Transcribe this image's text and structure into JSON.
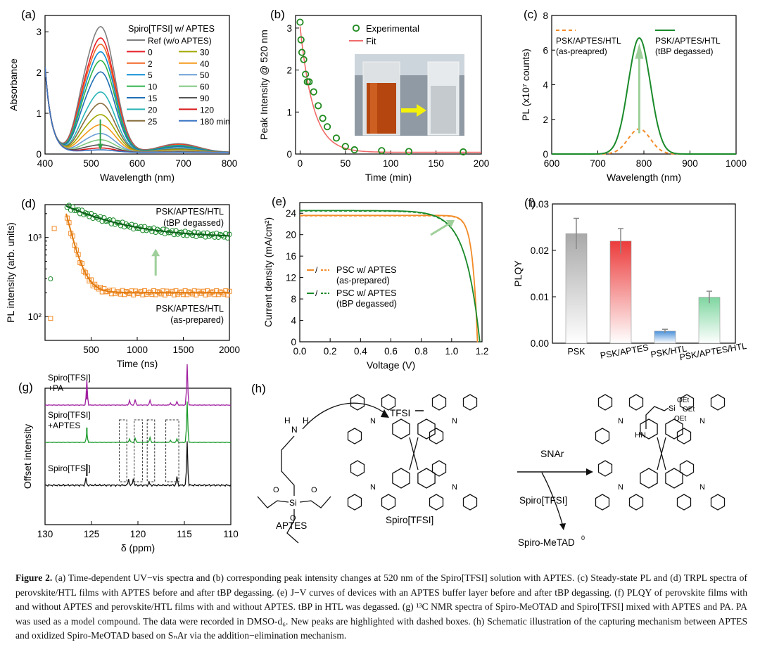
{
  "panels": [
    {
      "id": "a",
      "label": "(a)",
      "type": "line",
      "xlabel": "Wavelength (nm)",
      "ylabel": "Absorbance",
      "xlim": [
        400,
        800
      ],
      "ylim": [
        0,
        3.4
      ],
      "xticks": [
        400,
        500,
        600,
        700,
        800
      ],
      "yticks": [
        0,
        1,
        2,
        3
      ],
      "legend_title": "Spiro[TFSI] w/ APTES",
      "series": [
        {
          "name": "Ref (w/o APTES)",
          "color": "#7f7f7f",
          "scale": 1.0
        },
        {
          "name": "0",
          "color": "#e81e25",
          "scale": 0.91
        },
        {
          "name": "2",
          "color": "#f26522",
          "scale": 0.86
        },
        {
          "name": "5",
          "color": "#0f8ed6",
          "scale": 0.8
        },
        {
          "name": "10",
          "color": "#2fb34a",
          "scale": 0.73
        },
        {
          "name": "15",
          "color": "#1f6fb5",
          "scale": 0.64
        },
        {
          "name": "20",
          "color": "#2ab5b8",
          "scale": 0.48
        },
        {
          "name": "25",
          "color": "#8a6d3b",
          "scale": 0.39
        },
        {
          "name": "30",
          "color": "#a0a800",
          "scale": 0.3
        },
        {
          "name": "40",
          "color": "#f49a1a",
          "scale": 0.22
        },
        {
          "name": "50",
          "color": "#6b9fd6",
          "scale": 0.15
        },
        {
          "name": "60",
          "color": "#7fc77f",
          "scale": 0.1
        },
        {
          "name": "90",
          "color": "#555555",
          "scale": 0.06
        },
        {
          "name": "120",
          "color": "#d7191c",
          "scale": 0.035
        },
        {
          "name": "180 min",
          "color": "#3a75c4",
          "scale": 0.02
        }
      ],
      "peak_nm": 520,
      "peak_max": 3.05
    },
    {
      "id": "b",
      "label": "(b)",
      "type": "scatter",
      "xlabel": "Time (min)",
      "ylabel": "Peak Intensity @ 520 nm",
      "xlim": [
        -5,
        200
      ],
      "ylim": [
        0,
        3.3
      ],
      "xticks": [
        0,
        50,
        100,
        150,
        200
      ],
      "yticks": [
        0,
        1,
        2,
        3
      ],
      "legend": [
        "Experimental",
        "Fit"
      ],
      "x": [
        0,
        1,
        2,
        4,
        6,
        8,
        10,
        15,
        20,
        25,
        30,
        40,
        50,
        60,
        90,
        120,
        180
      ],
      "y": [
        3.14,
        2.72,
        2.42,
        2.25,
        1.9,
        1.72,
        1.72,
        1.48,
        1.15,
        0.85,
        0.65,
        0.38,
        0.18,
        0.1,
        0.08,
        0.06,
        0.05
      ],
      "fit": {
        "a": 3.0,
        "tau": 14.5
      }
    },
    {
      "id": "c",
      "label": "(c)",
      "type": "line",
      "xlabel": "Wavelength (nm)",
      "ylabel": "PL (x10⁷ counts)",
      "xlim": [
        600,
        1000
      ],
      "ylim": [
        0,
        8
      ],
      "xticks": [
        600,
        700,
        800,
        900,
        1000
      ],
      "yticks": [
        0,
        2,
        4,
        6,
        8
      ],
      "series": [
        {
          "name": "PSK/APTES/HTL (as-preapred)",
          "peak": 1.45,
          "color": "#f28c28",
          "dash": true
        },
        {
          "name": "PSK/APTES/HTL (tBP degassed)",
          "peak": 6.7,
          "color": "#1a8a2a",
          "dash": false
        }
      ],
      "center_nm": 790,
      "sigma": 34,
      "legend1": [
        "PSK/APTES/HTL",
        "(as-preapred)"
      ],
      "legend2": [
        "PSK/APTES/HTL",
        "(tBP degassed)"
      ]
    },
    {
      "id": "d",
      "label": "(d)",
      "type": "scatter",
      "xlabel": "Time (ns)",
      "ylabel": "PL intensity (arb. units)",
      "xlim": [
        0,
        2000
      ],
      "yscale": "log",
      "ylim": [
        50,
        2600
      ],
      "xticks": [
        500,
        1000,
        1500,
        2000
      ],
      "yticks": [
        100,
        1000
      ],
      "series": [
        {
          "name": "PSK/APTES/HTL (tBP degassed)",
          "color": "#1a8a2a",
          "A": 1000,
          "B": 1500,
          "tau": 520,
          "start": 230
        },
        {
          "name": "PSK/APTES/HTL (as-prepared)",
          "color": "#f28c28",
          "A": 200,
          "B": 1800,
          "tau": 85,
          "start": 230
        }
      ],
      "label_top": [
        "PSK/APTES/HTL",
        "(tBP degassed)"
      ],
      "label_bottom": [
        "PSK/APTES/HTL",
        "(as-prepared)"
      ]
    },
    {
      "id": "e",
      "label": "(e)",
      "type": "line",
      "xlabel": "Voltage (V)",
      "ylabel": "Current density (mA/cm²)",
      "xlim": [
        0,
        1.2
      ],
      "ylim": [
        0,
        26
      ],
      "xticks": [
        0.0,
        0.2,
        0.4,
        0.6,
        0.8,
        1.0,
        1.2
      ],
      "yticks": [
        0,
        4,
        8,
        12,
        16,
        20,
        24
      ],
      "series": [
        {
          "name": "PSC w/ APTES (as-prepared)",
          "jsc": 23.6,
          "voc": 1.17,
          "n": 9.0,
          "color": "#f28c28"
        },
        {
          "name": "PSC w/ APTES (tBP degassed)",
          "jsc": 24.5,
          "voc": 1.185,
          "n": 3.2,
          "color": "#1a8a2a"
        }
      ],
      "legend1": [
        "PSC w/ APTES",
        "(as-prepared)"
      ],
      "legend2": [
        "PSC w/ APTES",
        "(tBP degassed)"
      ]
    },
    {
      "id": "f",
      "label": "(f)",
      "type": "bar",
      "ylabel": "PLQY",
      "ylim": [
        0,
        0.03
      ],
      "yticks": [
        0.0,
        0.01,
        0.02,
        0.03
      ],
      "categories": [
        "PSK",
        "PSK/APTES",
        "PSK/HTL",
        "PSK/APTES/HTL"
      ],
      "values": [
        0.0236,
        0.022,
        0.0026,
        0.0099
      ],
      "errors": [
        0.0033,
        0.0027,
        0.0004,
        0.0013
      ],
      "colors": [
        "#a9a9a9",
        "#ec3b3b",
        "#4a90d9",
        "#7fd6a0"
      ]
    },
    {
      "id": "g",
      "label": "(g)",
      "type": "nmr",
      "xlabel": "δ (ppm)",
      "ylabel": "Offset intensity",
      "xlim": [
        130,
        110
      ],
      "xticks": [
        130,
        125,
        120,
        115,
        110
      ],
      "traces": [
        {
          "name": "Spiro[TFSI]",
          "lines": [
            "Spiro[TFSI]"
          ],
          "color": "#111111"
        },
        {
          "name": "Spiro[TFSI] +APTES",
          "lines": [
            "Spiro[TFSI]",
            "+APTES"
          ],
          "color": "#1a9a2a"
        },
        {
          "name": "Spiro[TFSI] +PA",
          "lines": [
            "Spiro[TFSI]",
            "+PA"
          ],
          "color": "#a020a0"
        }
      ]
    }
  ],
  "scheme": {
    "label": "(h)",
    "aptes": "APTES",
    "tfsi": "TFSI",
    "spiro_tfsi": "Spiro[TFSI]",
    "snar": "SNAr",
    "reagent": "Spiro[TFSI]",
    "product": "Spiro-MeTAD",
    "product_sup": "0",
    "oet": [
      "OEt",
      "OEt",
      "OEt"
    ],
    "si": "Si",
    "hn": "HN",
    "h": "H",
    "n": "N"
  },
  "caption": {
    "lead": "Figure 2.",
    "text": "(a) Time-dependent UV−vis spectra and (b) corresponding peak intensity changes at 520 nm of the Spiro[TFSI] solution with APTES. (c) Steady-state PL and (d) TRPL spectra of perovskite/HTL films with APTES before and after tBP degassing. (e) J−V curves of devices with an APTES buffer layer before and after tBP degassing. (f) PLQY of perovskite films with and without APTES and perovskite/HTL films with and without APTES. tBP in HTL was degassed. (g) ¹³C NMR spectra of Spiro-MeOTAD and Spiro[TFSI] mixed with APTES and PA. PA was used as a model compound. The data were recorded in DMSO-d₆. New peaks are highlighted with dashed boxes. (h) Schematic illustration of the capturing mechanism between APTES and oxidized Spiro-MeOTAD based on SₙAr via the addition−elimination mechanism."
  }
}
